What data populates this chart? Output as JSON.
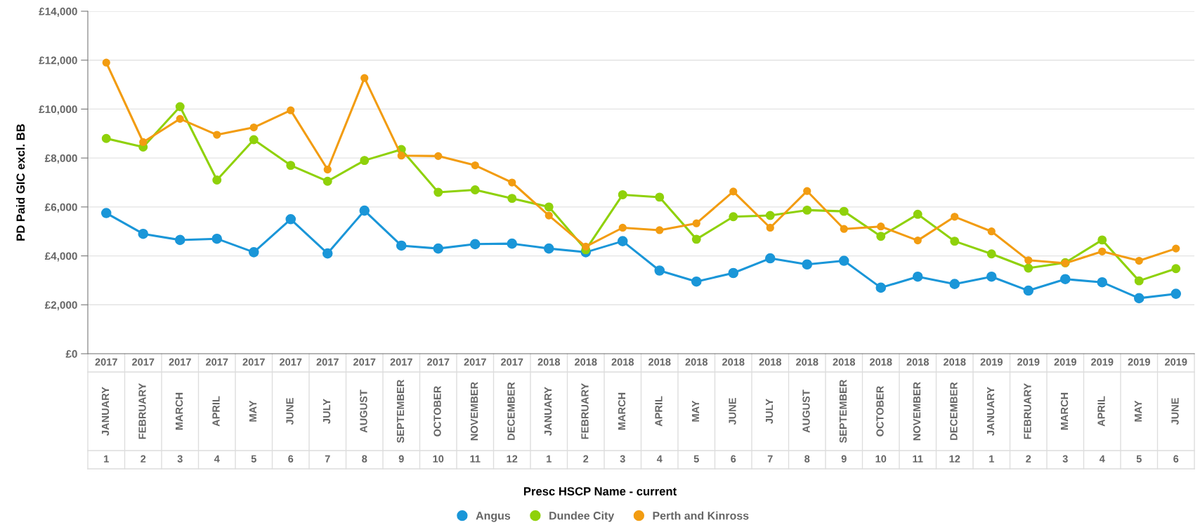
{
  "chart_data": {
    "type": "line",
    "ylabel": "PD Paid GIC excl. BB",
    "legend_title": "Presc HSCP Name - current",
    "categories": [
      "2017\nJANUARY\n1",
      "2017\nFEBRUARY\n2",
      "2017\nMARCH\n3",
      "2017\nAPRIL\n4",
      "2017\nMAY\n5",
      "2017\nJUNE\n6",
      "2017\nJULY\n7",
      "2017\nAUGUST\n8",
      "2017\nSEPTEMBER\n9",
      "2017\nOCTOBER\n10",
      "2017\nNOVEMBER\n11",
      "2017\nDECEMBER\n12",
      "2018\nJANUARY\n1",
      "2018\nFEBRUARY\n2",
      "2018\nMARCH\n3",
      "2018\nAPRIL\n4",
      "2018\nMAY\n5",
      "2018\nJUNE\n6",
      "2018\nJULY\n7",
      "2018\nAUGUST\n8",
      "2018\nSEPTEMBER\n9",
      "2018\nOCTOBER\n10",
      "2018\nNOVEMBER\n11",
      "2018\nDECEMBER\n12",
      "2019\nJANUARY\n1",
      "2019\nFEBRUARY\n2",
      "2019\nMARCH\n3",
      "2019\nAPRIL\n4",
      "2019\nMAY\n5",
      "2019\nJUNE\n6"
    ],
    "series": [
      {
        "name": "Angus",
        "color": "#1a96d8",
        "values": [
          5750,
          4900,
          4650,
          4700,
          4150,
          5500,
          4100,
          5850,
          4420,
          4300,
          4480,
          4500,
          4300,
          4150,
          4600,
          3400,
          2950,
          3300,
          3900,
          3650,
          3800,
          2700,
          3150,
          2850,
          3150,
          2580,
          3050,
          2920,
          2270,
          2450
        ]
      },
      {
        "name": "Dundee City",
        "color": "#8fd10a",
        "values": [
          8800,
          8450,
          10100,
          7100,
          8750,
          7700,
          7050,
          7900,
          8350,
          6600,
          6700,
          6350,
          6000,
          4250,
          6500,
          6400,
          4680,
          5600,
          5650,
          5870,
          5820,
          4800,
          5700,
          4600,
          4080,
          3500,
          3720,
          4650,
          2980,
          3480
        ]
      },
      {
        "name": "Perth and Kinross",
        "color": "#f29c11",
        "values": [
          11900,
          8650,
          9600,
          8950,
          9250,
          9950,
          7530,
          11270,
          8100,
          8080,
          7700,
          7000,
          5650,
          4380,
          5150,
          5050,
          5330,
          6630,
          5150,
          6650,
          5100,
          5200,
          4630,
          5600,
          5000,
          3820,
          3700,
          4180,
          3800,
          4300
        ]
      }
    ],
    "ylim": [
      0,
      14000
    ],
    "yticks": [
      {
        "value": 0,
        "label": "£0"
      },
      {
        "value": 2000,
        "label": "£2,000"
      },
      {
        "value": 4000,
        "label": "£4,000"
      },
      {
        "value": 6000,
        "label": "£6,000"
      },
      {
        "value": 8000,
        "label": "£8,000"
      },
      {
        "value": 10000,
        "label": "£10,000"
      },
      {
        "value": 12000,
        "label": "£12,000"
      },
      {
        "value": 14000,
        "label": "£14,000"
      }
    ],
    "grid": "y",
    "legend": "bottom",
    "marker": "circle",
    "line_style": "solid"
  }
}
